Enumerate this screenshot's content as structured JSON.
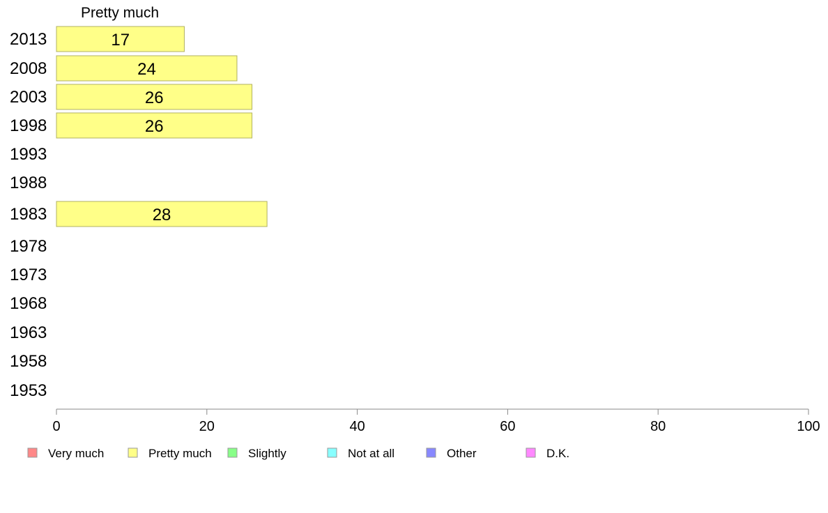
{
  "chart_data": {
    "type": "bar",
    "orientation": "horizontal",
    "series_title": "Pretty much",
    "categories": [
      "2013",
      "2008",
      "2003",
      "1998",
      "1993",
      "1988",
      "1983",
      "1978",
      "1973",
      "1968",
      "1963",
      "1958",
      "1953"
    ],
    "series": [
      {
        "name": "Pretty much",
        "color": "#ffff88",
        "values": [
          17,
          24,
          26,
          26,
          null,
          null,
          28,
          null,
          null,
          null,
          null,
          null,
          null
        ]
      }
    ],
    "xlim": [
      0,
      100
    ],
    "xticks": [
      0,
      20,
      40,
      60,
      80,
      100
    ],
    "legend": {
      "position": "bottom",
      "items": [
        {
          "label": "Very much",
          "color": "#ff8888"
        },
        {
          "label": "Pretty much",
          "color": "#ffff88"
        },
        {
          "label": "Slightly",
          "color": "#88ff88"
        },
        {
          "label": "Not at all",
          "color": "#88ffff"
        },
        {
          "label": "Other",
          "color": "#8888ff"
        },
        {
          "label": "D.K.",
          "color": "#ff88ff"
        }
      ]
    }
  }
}
